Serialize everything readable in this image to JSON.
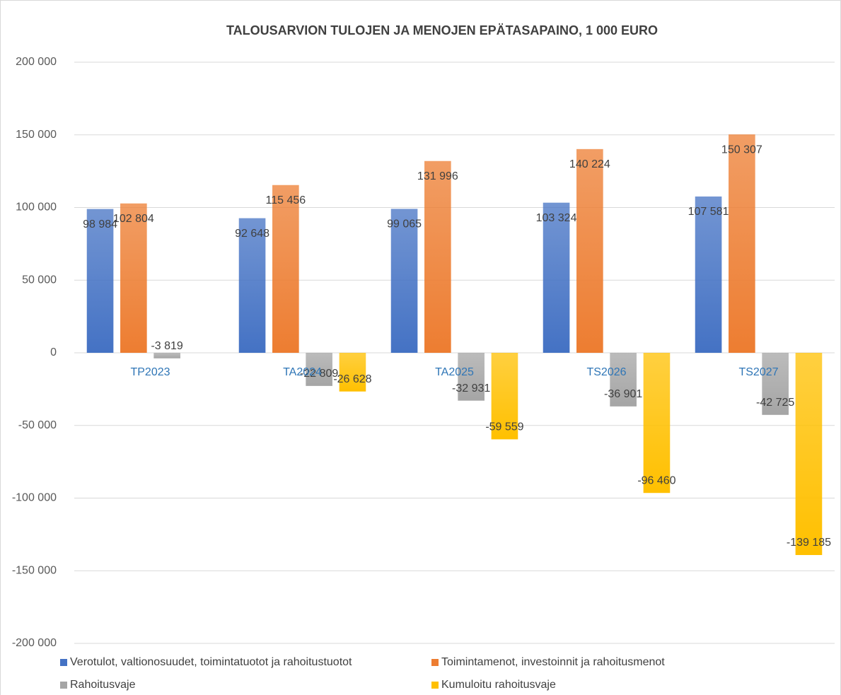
{
  "chart_data": {
    "type": "bar",
    "title": "TALOUSARVION TULOJEN JA MENOJEN EPÄTASAPAINO, 1 000 EURO",
    "categories": [
      "TP2023",
      "TA2024",
      "TA2025",
      "TS2026",
      "TS2027"
    ],
    "series": [
      {
        "name": "Verotulot, valtionosuudet, toimintatuotot ja rahoitustuotot",
        "color": "#4472c4",
        "values": [
          98984,
          92648,
          99065,
          103324,
          107581
        ],
        "value_labels": [
          "98 984",
          "92 648",
          "99 065",
          "103 324",
          "107 581"
        ]
      },
      {
        "name": "Toimintamenot, investoinnit ja rahoitusmenot",
        "color": "#ed7d31",
        "values": [
          102804,
          115456,
          131996,
          140224,
          150307
        ],
        "value_labels": [
          "102 804",
          "115 456",
          "131 996",
          "140 224",
          "150 307"
        ]
      },
      {
        "name": "Rahoitusvaje",
        "color": "#a5a5a5",
        "values": [
          -3819,
          -22809,
          -32931,
          -36901,
          -42725
        ],
        "value_labels": [
          "-3 819",
          "-22 809",
          "-32 931",
          "-36 901",
          "-42 725"
        ]
      },
      {
        "name": "Kumuloitu rahoitusvaje",
        "color": "#ffc000",
        "values": [
          null,
          -26628,
          -59559,
          -96460,
          -139185
        ],
        "value_labels": [
          null,
          "-26 628",
          "-59 559",
          "-96 460",
          "-139 185"
        ]
      }
    ],
    "ylim": [
      -200000,
      200000
    ],
    "yticks": [
      {
        "value": -200000,
        "label": "-200 000"
      },
      {
        "value": -150000,
        "label": "-150 000"
      },
      {
        "value": -100000,
        "label": "-100 000"
      },
      {
        "value": -50000,
        "label": "-50 000"
      },
      0,
      {
        "value": 50000,
        "label": "50 000"
      },
      {
        "value": 100000,
        "label": "100 000"
      },
      {
        "value": 150000,
        "label": "150 000"
      },
      {
        "value": 200000,
        "label": "200 000"
      }
    ],
    "grid": true
  }
}
